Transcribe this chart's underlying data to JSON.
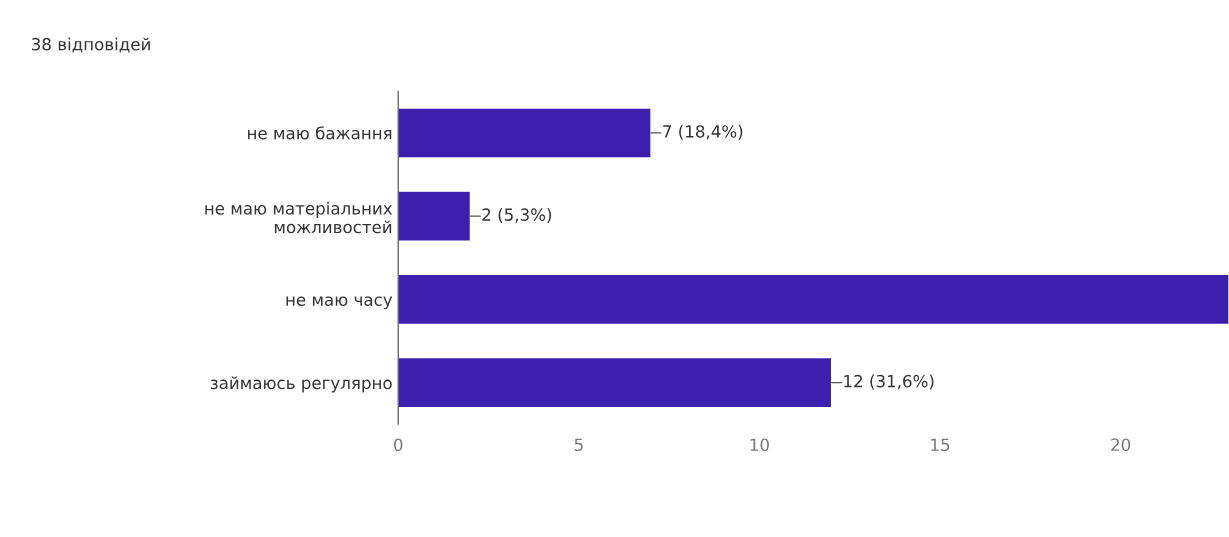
{
  "chart_data": {
    "type": "bar",
    "orientation": "horizontal",
    "title": "38 відповідей",
    "categories": [
      "не маю бажання",
      "не маю матеріальних\nможливостей",
      "не маю часу",
      "займаюсь регулярно"
    ],
    "values": [
      7,
      2,
      23,
      12
    ],
    "value_labels": [
      "7 (18,4%)",
      "2 (5,3%)",
      null,
      "12 (31,6%)"
    ],
    "color": "#3d1fae",
    "xlim": [
      0,
      23
    ],
    "xticks": [
      0,
      5,
      10,
      15,
      20
    ],
    "grid": false,
    "legend": false
  }
}
